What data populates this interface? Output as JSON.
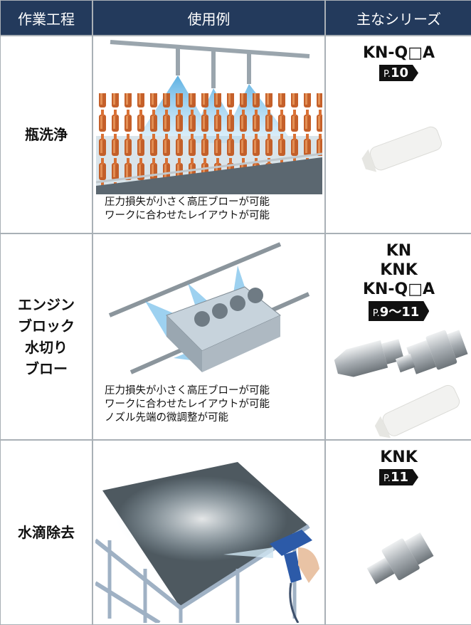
{
  "header": {
    "columns": [
      "作業工程",
      "使用例",
      "主なシリーズ"
    ]
  },
  "rows": [
    {
      "process": [
        "瓶洗浄"
      ],
      "description": [
        "圧力損失が小さく高圧ブローが可能",
        "ワークに合わせたレイアウトが可能"
      ],
      "series": [
        "KN-Q□A"
      ],
      "page_prefix": "P.",
      "page": "10"
    },
    {
      "process": [
        "エンジン",
        "ブロック",
        "水切り",
        "ブロー"
      ],
      "description": [
        "圧力損失が小さく高圧ブローが可能",
        "ワークに合わせたレイアウトが可能",
        "ノズル先端の微調整が可能"
      ],
      "series": [
        "KN",
        "KNK",
        "KN-Q□A"
      ],
      "page_prefix": "P.",
      "page": "9～11"
    },
    {
      "process": [
        "水滴除去"
      ],
      "series": [
        "KNK"
      ],
      "page_prefix": "P.",
      "page": "11"
    }
  ]
}
